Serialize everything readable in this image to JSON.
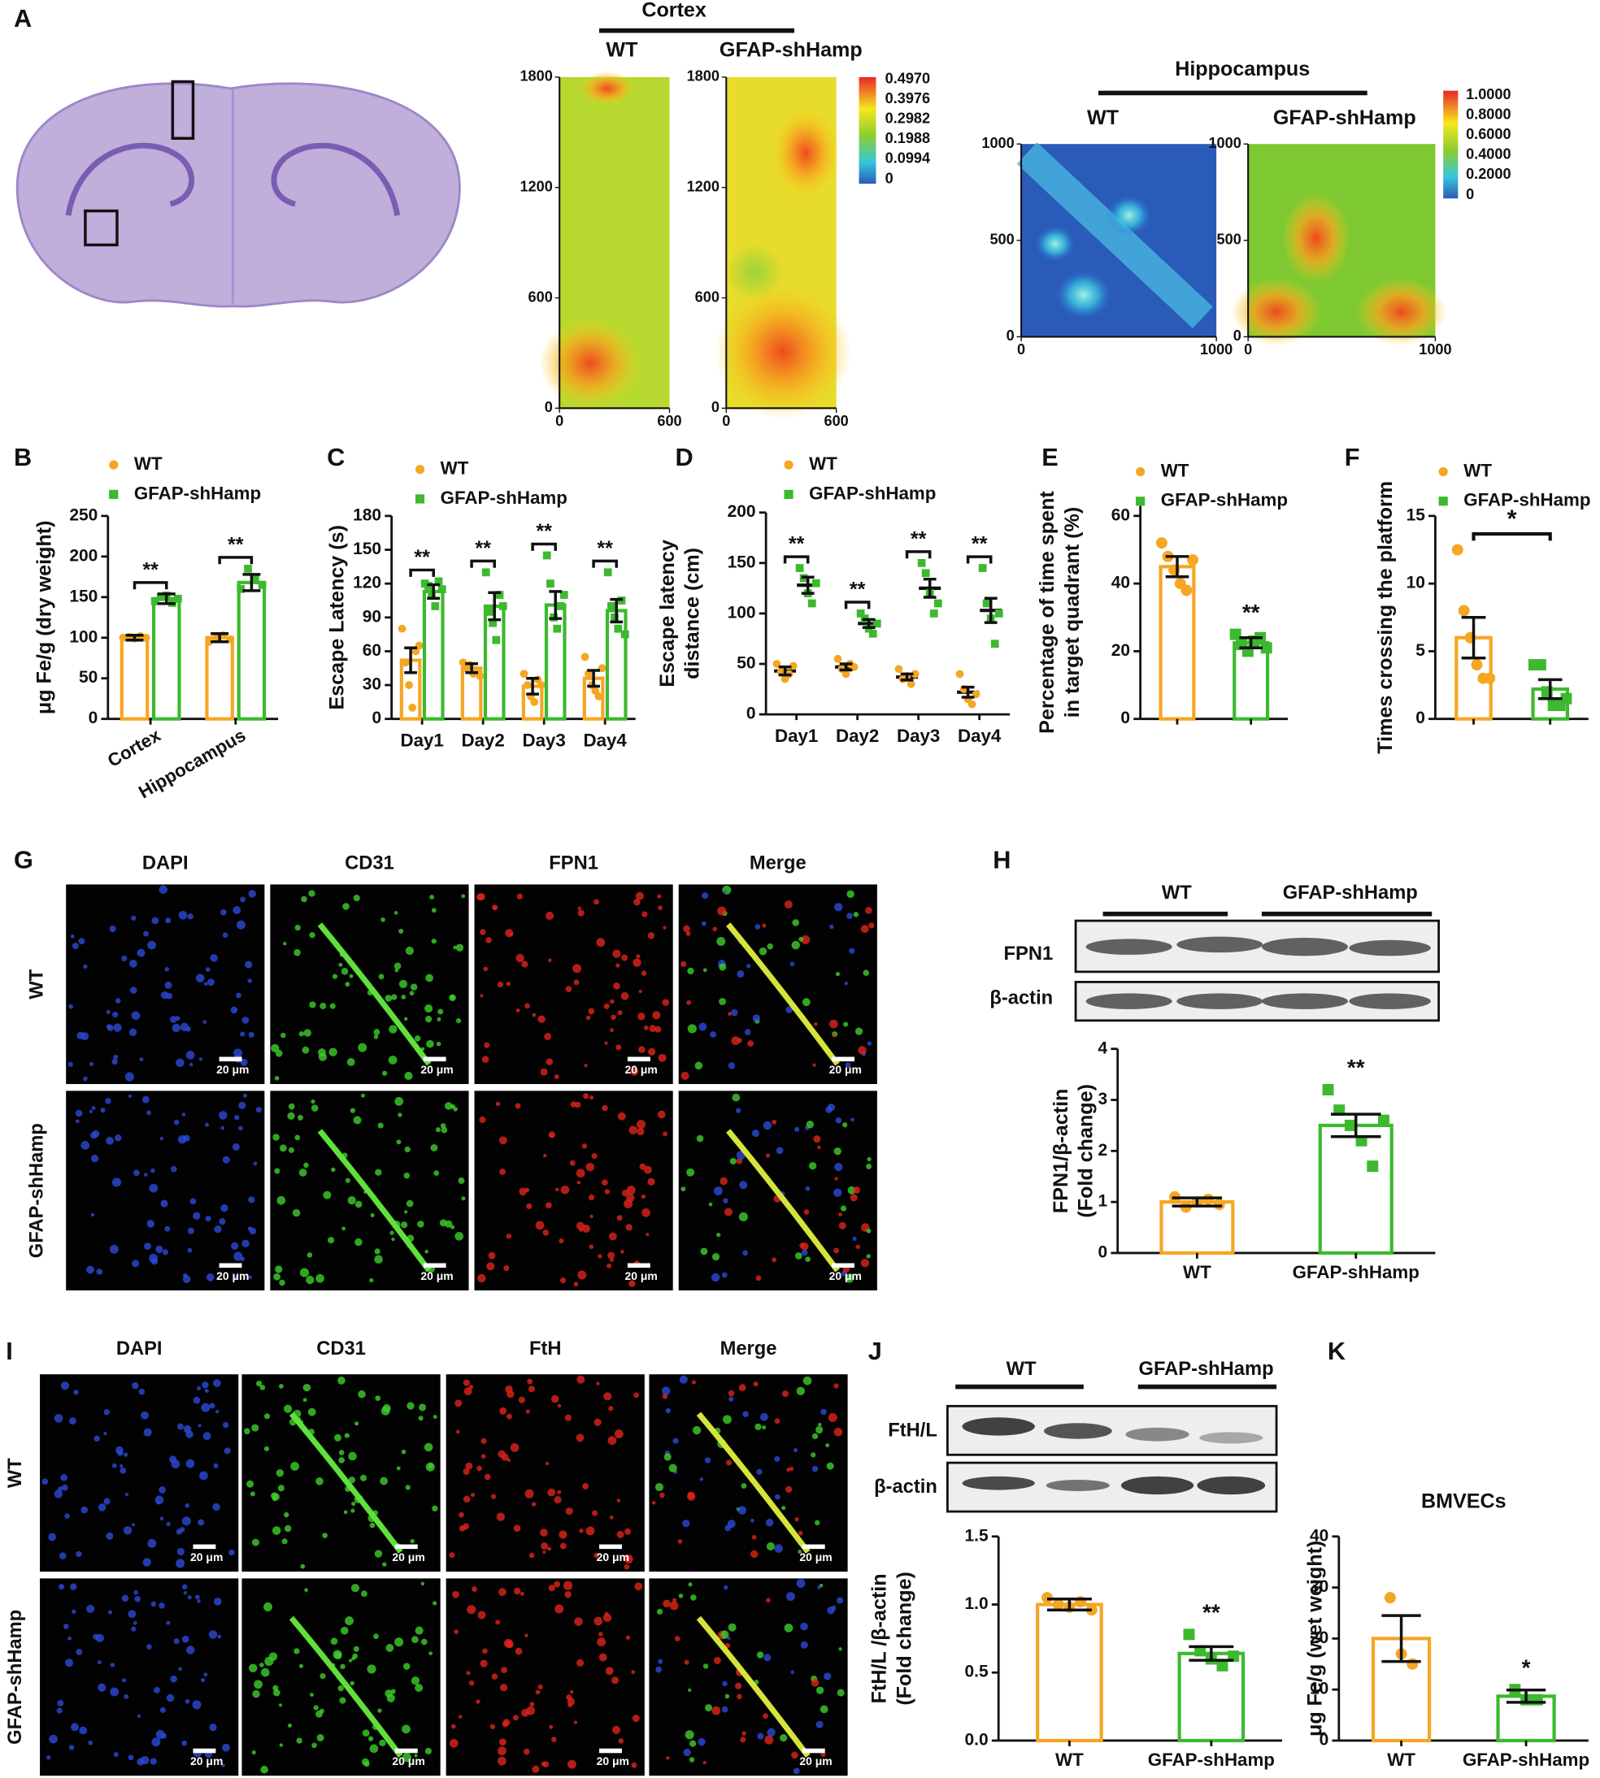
{
  "panel_labels": [
    "A",
    "B",
    "C",
    "D",
    "E",
    "F",
    "G",
    "H",
    "I",
    "J",
    "K"
  ],
  "panel_a": {
    "cortex": {
      "title": "Cortex",
      "groups": [
        "WT",
        "GFAP-shHamp"
      ],
      "yticks": [
        0,
        600,
        1200,
        1800
      ],
      "xticks": [
        0,
        600
      ],
      "ylim": [
        0,
        1800
      ],
      "xlim": [
        0,
        600
      ],
      "colorbar": [
        "0.4970",
        "0.3976",
        "0.2982",
        "0.1988",
        "0.0994",
        "0"
      ]
    },
    "hippocampus": {
      "title": "Hippocampus",
      "groups": [
        "WT",
        "GFAP-shHamp"
      ],
      "yticks": [
        0,
        500,
        1000
      ],
      "xticks": [
        0,
        1000
      ],
      "ylim": [
        0,
        1000
      ],
      "xlim": [
        0,
        1000
      ],
      "colorbar": [
        "1.0000",
        "0.8000",
        "0.6000",
        "0.4000",
        "0.2000",
        "0"
      ]
    }
  },
  "panel_g": {
    "columns": [
      "DAPI",
      "CD31",
      "FPN1",
      "Merge"
    ],
    "rows": [
      "WT",
      "GFAP-shHamp"
    ],
    "scale": "20 μm"
  },
  "panel_h": {
    "groups": [
      "WT",
      "GFAP-shHamp"
    ],
    "bands": [
      "FPN1",
      "β-actin"
    ]
  },
  "panel_i": {
    "columns": [
      "DAPI",
      "CD31",
      "FtH",
      "Merge"
    ],
    "rows": [
      "WT",
      "GFAP-shHamp"
    ],
    "scale": "20 μm"
  },
  "panel_j": {
    "groups": [
      "WT",
      "GFAP-shHamp"
    ],
    "bands": [
      "FtH/L",
      "β-actin"
    ]
  },
  "chart_data": [
    {
      "type": "bar",
      "ylabel": [
        "μg Fe/g (dry weight)"
      ],
      "categories": [
        "Cortex",
        "Hippocampus"
      ],
      "xtick_rotation": -30,
      "annotations": [
        "**",
        "**"
      ],
      "ylim": [
        0,
        250
      ],
      "yticks": [
        0,
        50,
        100,
        150,
        200,
        250
      ],
      "legend": true,
      "series": [
        {
          "name": "WT",
          "color": "#f5a623",
          "marker": "circle",
          "values": [
            100,
            100
          ],
          "errors": [
            3,
            5
          ],
          "points": [
            [
              100,
              101,
              99,
              102,
              100
            ],
            [
              95,
              100,
              103,
              98
            ]
          ]
        },
        {
          "name": "GFAP-shHamp",
          "color": "#3cb92f",
          "marker": "square",
          "values": [
            148,
            168
          ],
          "errors": [
            6,
            10
          ],
          "points": [
            [
              145,
              150,
              152,
              143,
              148
            ],
            [
              160,
              185,
              172,
              165
            ]
          ]
        }
      ]
    },
    {
      "type": "bar",
      "ylabel": [
        "Escape Latency (s)"
      ],
      "categories": [
        "Day1",
        "Day2",
        "Day3",
        "Day4"
      ],
      "annotations": [
        "**",
        "**",
        "**",
        "**"
      ],
      "ylim": [
        0,
        180
      ],
      "yticks": [
        0,
        30,
        60,
        90,
        120,
        150,
        180
      ],
      "legend": true,
      "series": [
        {
          "name": "WT",
          "color": "#f5a623",
          "marker": "circle",
          "values": [
            52,
            45,
            29,
            36
          ],
          "errors": [
            11,
            4,
            7,
            7
          ],
          "points": [
            [
              80,
              50,
              30,
              10,
              60,
              65
            ],
            [
              50,
              45,
              48,
              40,
              42,
              38
            ],
            [
              40,
              30,
              20,
              15,
              35,
              30
            ],
            [
              55,
              40,
              30,
              25,
              20,
              45
            ]
          ]
        },
        {
          "name": "GFAP-shHamp",
          "color": "#3cb92f",
          "marker": "square",
          "values": [
            113,
            100,
            101,
            96
          ],
          "errors": [
            6,
            12,
            12,
            10
          ],
          "points": [
            [
              120,
              118,
              110,
              100,
              122,
              115
            ],
            [
              130,
              95,
              85,
              70,
              110,
              100
            ],
            [
              145,
              120,
              90,
              80,
              100,
              110
            ],
            [
              130,
              100,
              90,
              80,
              105,
              75
            ]
          ]
        }
      ]
    },
    {
      "type": "dotplot",
      "ylabel": [
        "Escape latency",
        "distance (cm)"
      ],
      "categories": [
        "Day1",
        "Day2",
        "Day3",
        "Day4"
      ],
      "annotations": [
        "**",
        "**",
        "**",
        "**"
      ],
      "ylim": [
        0,
        200
      ],
      "yticks": [
        0,
        50,
        100,
        150,
        200
      ],
      "legend": true,
      "series": [
        {
          "name": "WT",
          "color": "#f5a623",
          "marker": "circle",
          "values": [
            43,
            47,
            37,
            22
          ],
          "errors": [
            4,
            3,
            3,
            5
          ],
          "points": [
            [
              50,
              42,
              35,
              40,
              48
            ],
            [
              55,
              45,
              40,
              50,
              47
            ],
            [
              45,
              35,
              38,
              30,
              40
            ],
            [
              40,
              25,
              15,
              10,
              20
            ]
          ]
        },
        {
          "name": "GFAP-shHamp",
          "color": "#3cb92f",
          "marker": "square",
          "values": [
            128,
            90,
            125,
            103
          ],
          "errors": [
            8,
            4,
            9,
            12
          ],
          "points": [
            [
              145,
              135,
              120,
              110,
              130
            ],
            [
              100,
              95,
              85,
              80,
              90
            ],
            [
              150,
              140,
              120,
              100,
              110
            ],
            [
              145,
              110,
              95,
              70,
              100
            ]
          ]
        }
      ]
    },
    {
      "type": "bar",
      "ylabel": [
        "Percentage of time spent",
        "in target quadrant (%)"
      ],
      "ylim": [
        0,
        63
      ],
      "yticks": [
        0,
        20,
        40,
        60
      ],
      "legend": true,
      "series": [
        {
          "name": "WT",
          "color": "#f5a623",
          "marker": "circle",
          "values": [
            45
          ],
          "errors": [
            3
          ],
          "points": [
            [
              52,
              48,
              44,
              40,
              38,
              47
            ]
          ]
        },
        {
          "name": "GFAP-shHamp",
          "color": "#3cb92f",
          "marker": "square",
          "values": [
            22.5
          ],
          "errors": [
            1.5
          ],
          "points": [
            [
              25,
              22,
              20,
              23,
              24,
              21
            ]
          ],
          "annotation": "**"
        }
      ]
    },
    {
      "type": "bar",
      "ylabel": [
        "Times crossing the platform"
      ],
      "ylim": [
        0,
        15
      ],
      "yticks": [
        0,
        5,
        10,
        15
      ],
      "legend": true,
      "bracket": "*",
      "series": [
        {
          "name": "WT",
          "color": "#f5a623",
          "marker": "circle",
          "values": [
            6
          ],
          "errors": [
            1.5
          ],
          "points": [
            [
              12.5,
              8,
              6,
              4,
              3,
              3
            ]
          ]
        },
        {
          "name": "GFAP-shHamp",
          "color": "#3cb92f",
          "marker": "square",
          "values": [
            2.2
          ],
          "errors": [
            0.7
          ],
          "points": [
            [
              4,
              4,
              2,
              1,
              1,
              1.5
            ]
          ]
        }
      ]
    },
    {
      "type": "bar",
      "ylabel": [
        "FPN1/β-actin",
        "(Fold change)"
      ],
      "ylim": [
        0,
        4
      ],
      "yticks": [
        0,
        1,
        2,
        3,
        4
      ],
      "legend": false,
      "series": [
        {
          "name": "WT",
          "color": "#f5a623",
          "marker": "circle",
          "values": [
            1.0
          ],
          "errors": [
            0.08
          ],
          "points": [
            [
              1.1,
              0.9,
              1.0,
              1.05,
              0.95
            ]
          ]
        },
        {
          "name": "GFAP-shHamp",
          "color": "#3cb92f",
          "marker": "square",
          "values": [
            2.5
          ],
          "errors": [
            0.22
          ],
          "points": [
            [
              3.2,
              2.8,
              2.5,
              2.2,
              1.7,
              2.6
            ]
          ],
          "annotation": "**"
        }
      ]
    },
    {
      "type": "bar",
      "ylabel": [
        "FtH/L /β-actin",
        "(Fold change)"
      ],
      "ylim": [
        0,
        1.5
      ],
      "yticks": [
        {
          "value": 0,
          "label": "0.0"
        },
        0.5,
        {
          "value": 1,
          "label": "1.0"
        },
        1.5
      ],
      "legend": false,
      "series": [
        {
          "name": "WT",
          "color": "#f5a623",
          "marker": "circle",
          "values": [
            1.0
          ],
          "errors": [
            0.04
          ],
          "points": [
            [
              1.05,
              1.0,
              0.98,
              1.02,
              0.96
            ]
          ]
        },
        {
          "name": "GFAP-shHamp",
          "color": "#3cb92f",
          "marker": "square",
          "values": [
            0.64
          ],
          "errors": [
            0.05
          ],
          "points": [
            [
              0.78,
              0.66,
              0.6,
              0.55,
              0.62
            ]
          ],
          "annotation": "**"
        }
      ]
    },
    {
      "type": "bar",
      "title": "BMVECs",
      "ylabel": [
        "μg Fe/g (wet weight)"
      ],
      "ylim": [
        0,
        40
      ],
      "yticks": [
        0,
        10,
        20,
        30,
        40
      ],
      "legend": false,
      "series": [
        {
          "name": "WT",
          "color": "#f5a623",
          "marker": "circle",
          "values": [
            20
          ],
          "errors": [
            4.5
          ],
          "points": [
            [
              28,
              17,
              15
            ]
          ]
        },
        {
          "name": "GFAP-shHamp",
          "color": "#3cb92f",
          "marker": "square",
          "values": [
            8.7
          ],
          "errors": [
            1.2
          ],
          "points": [
            [
              10,
              8,
              8
            ]
          ],
          "annotation": "*"
        }
      ]
    }
  ]
}
